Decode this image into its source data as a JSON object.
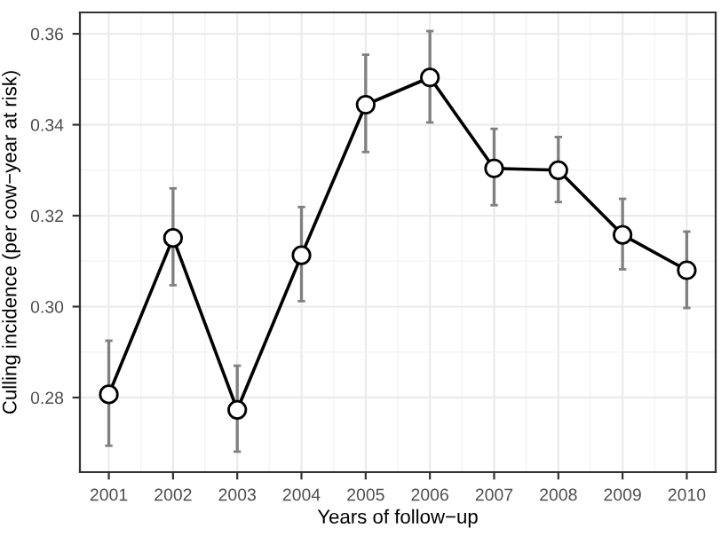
{
  "chart_data": {
    "type": "line",
    "xlabel": "Years of follow−up",
    "ylabel": "Culling incidence (per cow−year at risk)",
    "x": [
      2001,
      2002,
      2003,
      2004,
      2005,
      2006,
      2007,
      2008,
      2009,
      2010
    ],
    "series": [
      {
        "color": "#000000",
        "values": [
          0.2807,
          0.3151,
          0.2773,
          0.3113,
          0.3444,
          0.3504,
          0.3304,
          0.33,
          0.3158,
          0.308
        ],
        "errors": [
          [
            0.2694,
            0.2925
          ],
          [
            0.3047,
            0.326
          ],
          [
            0.2681,
            0.287
          ],
          [
            0.3012,
            0.3219
          ],
          [
            0.334,
            0.3554
          ],
          [
            0.3405,
            0.3606
          ],
          [
            0.3223,
            0.3391
          ],
          [
            0.323,
            0.3373
          ],
          [
            0.3082,
            0.3237
          ],
          [
            0.2997,
            0.3165
          ]
        ]
      }
    ],
    "xlim": [
      2000.55,
      2010.45
    ],
    "ylim": [
      0.2636,
      0.3647
    ],
    "xticks": [
      2001,
      2002,
      2003,
      2004,
      2005,
      2006,
      2007,
      2008,
      2009,
      2010
    ],
    "yticks": [
      {
        "value": 0.28,
        "label": "0.28"
      },
      {
        "value": 0.3,
        "label": "0.30"
      },
      {
        "value": 0.32,
        "label": "0.32"
      },
      {
        "value": 0.34,
        "label": "0.34"
      },
      {
        "value": 0.36,
        "label": "0.36"
      }
    ],
    "grid": true,
    "marker": "circle",
    "line_style": "solid",
    "legend": false
  }
}
